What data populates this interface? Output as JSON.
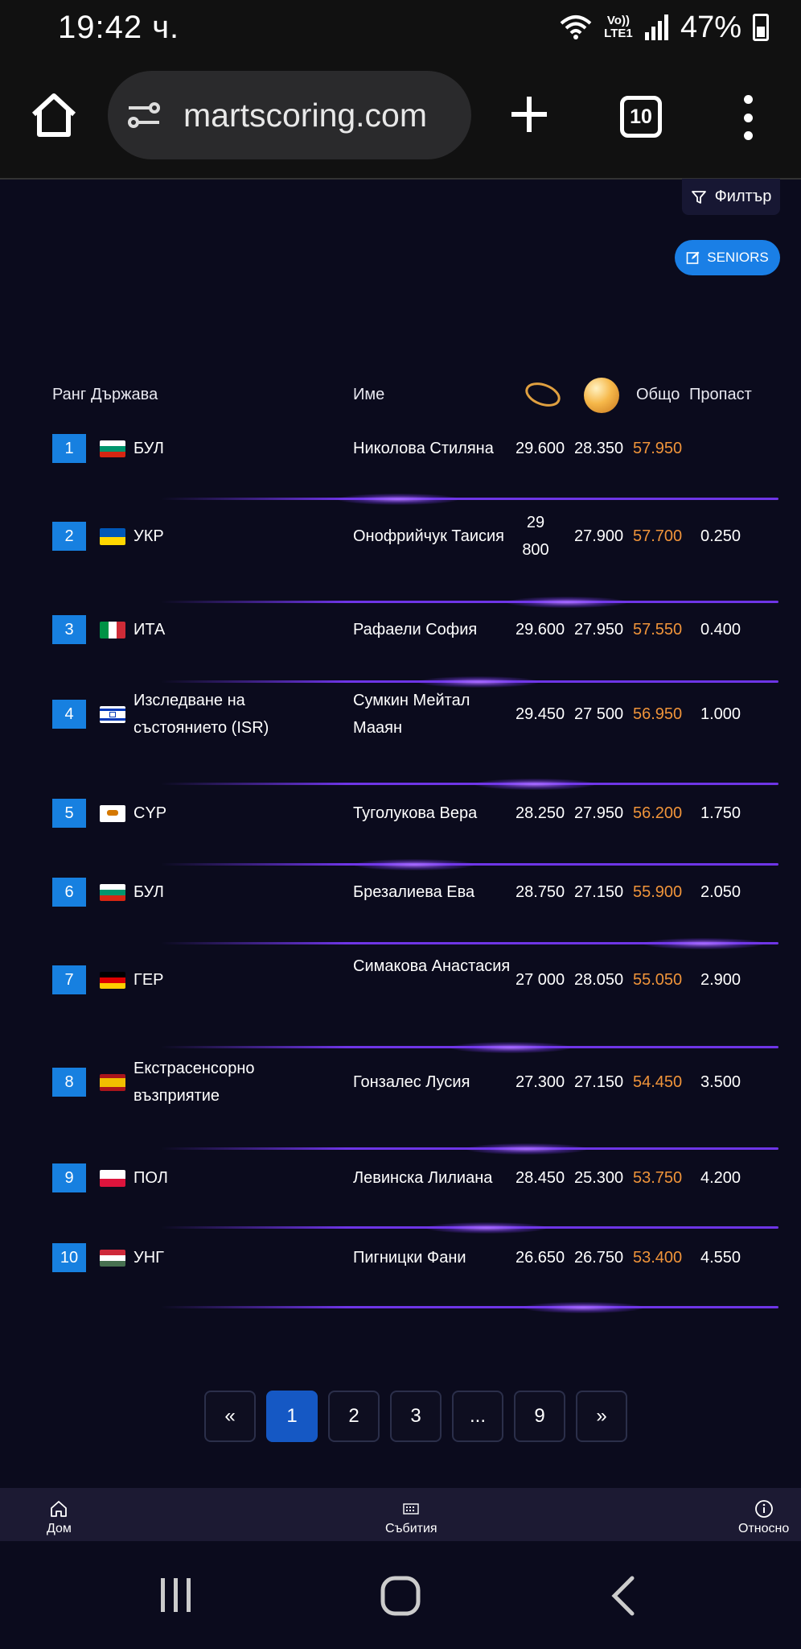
{
  "status_bar": {
    "time": "19:42 ч.",
    "network": "Vo)) LTE1",
    "battery": "47%"
  },
  "browser": {
    "url": "martscoring.com",
    "tab_count": "10"
  },
  "page": {
    "filter_label": "Филтър",
    "seniors_label": "SENIORS",
    "headers": {
      "rank": "Ранг",
      "country": "Държава",
      "name": "Име",
      "total": "Общо",
      "gap": "Пропаст"
    },
    "rows": [
      {
        "rank": "1",
        "flag": "bulgaria-flag",
        "country": "БУЛ",
        "name": "Николова Стиляна",
        "s1": "29.600",
        "s2": "28.350",
        "total": "57.950",
        "gap": ""
      },
      {
        "rank": "2",
        "flag": "ukraine-flag",
        "country": "УКР",
        "name": "Онофрийчук Таисия",
        "s1": "29 800",
        "s2": "27.900",
        "total": "57.700",
        "gap": "0.250"
      },
      {
        "rank": "3",
        "flag": "italy-flag",
        "country": "ИТА",
        "name": "Рафаели София",
        "s1": "29.600",
        "s2": "27.950",
        "total": "57.550",
        "gap": "0.400"
      },
      {
        "rank": "4",
        "flag": "israel-flag",
        "country": "Изследване на състоянието (ISR)",
        "name": "Сумкин Мейтал Мааян",
        "s1": "29.450",
        "s2": "27 500",
        "total": "56.950",
        "gap": "1.000"
      },
      {
        "rank": "5",
        "flag": "cyprus-flag",
        "country": "CYP",
        "name": "Туголукова Вера",
        "s1": "28.250",
        "s2": "27.950",
        "total": "56.200",
        "gap": "1.750"
      },
      {
        "rank": "6",
        "flag": "bulgaria-flag",
        "country": "БУЛ",
        "name": "Брезалиева Ева",
        "s1": "28.750",
        "s2": "27.150",
        "total": "55.900",
        "gap": "2.050"
      },
      {
        "rank": "7",
        "flag": "germany-flag",
        "country": "ГЕР",
        "name": "Симакова Анастасия",
        "s1": "27 000",
        "s2": "28.050",
        "total": "55.050",
        "gap": "2.900"
      },
      {
        "rank": "8",
        "flag": "spain-flag",
        "country": "Екстрасенсорно възприятие",
        "name": "Гонзалес Лусия",
        "s1": "27.300",
        "s2": "27.150",
        "total": "54.450",
        "gap": "3.500"
      },
      {
        "rank": "9",
        "flag": "poland-flag",
        "country": "ПОЛ",
        "name": "Левинска Лилиана",
        "s1": "28.450",
        "s2": "25.300",
        "total": "53.750",
        "gap": "4.200"
      },
      {
        "rank": "10",
        "flag": "hungary-flag",
        "country": "УНГ",
        "name": "Пигницки Фани",
        "s1": "26.650",
        "s2": "26.750",
        "total": "53.400",
        "gap": "4.550"
      }
    ],
    "pagination": [
      "«",
      "1",
      "2",
      "3",
      "...",
      "9",
      "»"
    ],
    "current_page": "1"
  },
  "app_nav": {
    "home": "Дом",
    "events": "Събития",
    "about": "Относно"
  },
  "colors": {
    "background": "#0b0b1d",
    "accent_blue": "#1780e0",
    "total_orange": "#f0943a",
    "divider_purple": "#6e35e6"
  }
}
